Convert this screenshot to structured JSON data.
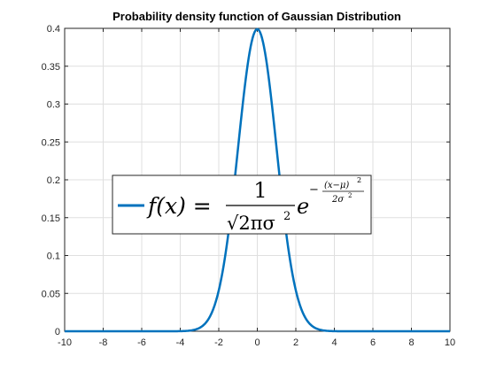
{
  "chart_data": {
    "type": "line",
    "title": "Probability density function of Gaussian Distribution",
    "xlabel": "",
    "ylabel": "",
    "xlim": [
      -10,
      10
    ],
    "ylim": [
      0,
      0.4
    ],
    "x_ticks": [
      "-10",
      "-8",
      "-6",
      "-4",
      "-2",
      "0",
      "2",
      "4",
      "6",
      "8",
      "10"
    ],
    "y_ticks": [
      "0",
      "0.05",
      "0.1",
      "0.15",
      "0.2",
      "0.25",
      "0.3",
      "0.35",
      "0.4"
    ],
    "grid": true,
    "legend_placement": "center",
    "series": [
      {
        "color": "#0072bd",
        "mu": 0,
        "sigma": 1,
        "x": [
          -10,
          -4,
          -3.5,
          -3,
          -2.5,
          -2,
          -1.5,
          -1,
          -0.5,
          0,
          0.5,
          1,
          1.5,
          2,
          2.5,
          3,
          3.5,
          4,
          10
        ],
        "y": [
          0,
          0.0001,
          0.0009,
          0.0044,
          0.0175,
          0.054,
          0.1295,
          0.242,
          0.3521,
          0.3989,
          0.3521,
          0.242,
          0.1295,
          0.054,
          0.0175,
          0.0044,
          0.0009,
          0.0001,
          0
        ]
      }
    ],
    "legend_entry": {
      "lhs": "f(x) = ",
      "numerator": "1",
      "denominator": "√2πσ",
      "denominator_power": "2",
      "base": "e",
      "exp_sign": "−",
      "exp_numerator": "(x−μ)",
      "exp_numerator_power": "2",
      "exp_denominator": "2σ",
      "exp_denominator_power": "2"
    }
  }
}
